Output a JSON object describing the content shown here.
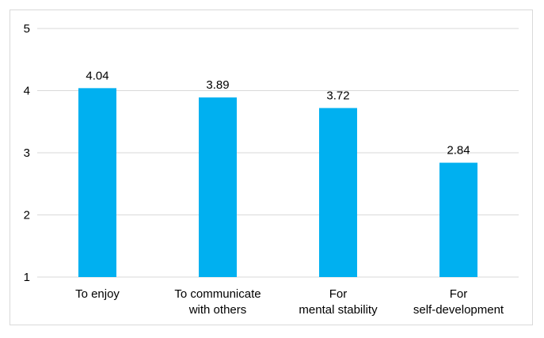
{
  "chart_data": {
    "type": "bar",
    "categories": [
      [
        "To enjoy"
      ],
      [
        "To communicate",
        "with others"
      ],
      [
        "For",
        "mental stability"
      ],
      [
        "For",
        "self-development"
      ]
    ],
    "values": [
      4.04,
      3.89,
      3.72,
      2.84
    ],
    "data_labels": [
      "4.04",
      "3.89",
      "3.72",
      "2.84"
    ],
    "y_ticks": [
      "1",
      "2",
      "3",
      "4",
      "5"
    ],
    "ylim": [
      1,
      5
    ],
    "grid": true,
    "bar_color": "#00b0f0",
    "grid_color": "#d9d9d9"
  }
}
